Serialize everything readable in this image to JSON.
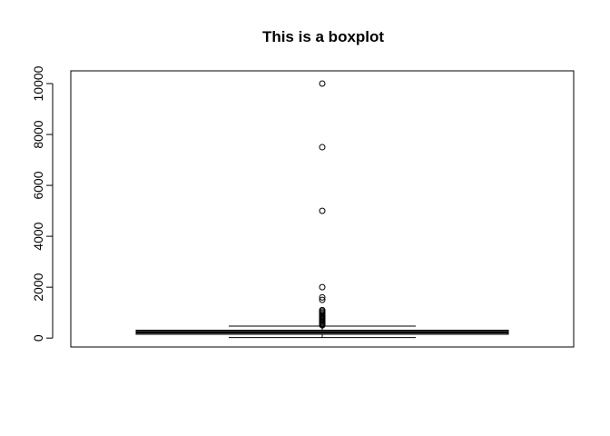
{
  "chart_data": {
    "type": "boxplot",
    "title": "This is a boxplot",
    "xlabel": "",
    "ylabel": "",
    "ylim": [
      -350,
      10500
    ],
    "yticks": [
      0,
      2000,
      4000,
      6000,
      8000,
      10000
    ],
    "ytick_labels": [
      "0",
      "2000",
      "4000",
      "6000",
      "8000",
      "10000"
    ],
    "grid": false,
    "box": {
      "lower_whisker": 20,
      "q1": 150,
      "median": 230,
      "q3": 310,
      "upper_whisker": 470
    },
    "outliers": [
      500,
      540,
      580,
      620,
      660,
      700,
      740,
      780,
      820,
      860,
      900,
      950,
      1000,
      1050,
      1100,
      1500,
      1600,
      2000,
      5000,
      7500,
      10000
    ],
    "colors": {
      "axis": "#000000",
      "box_stroke": "#000000",
      "background": "#ffffff"
    }
  }
}
